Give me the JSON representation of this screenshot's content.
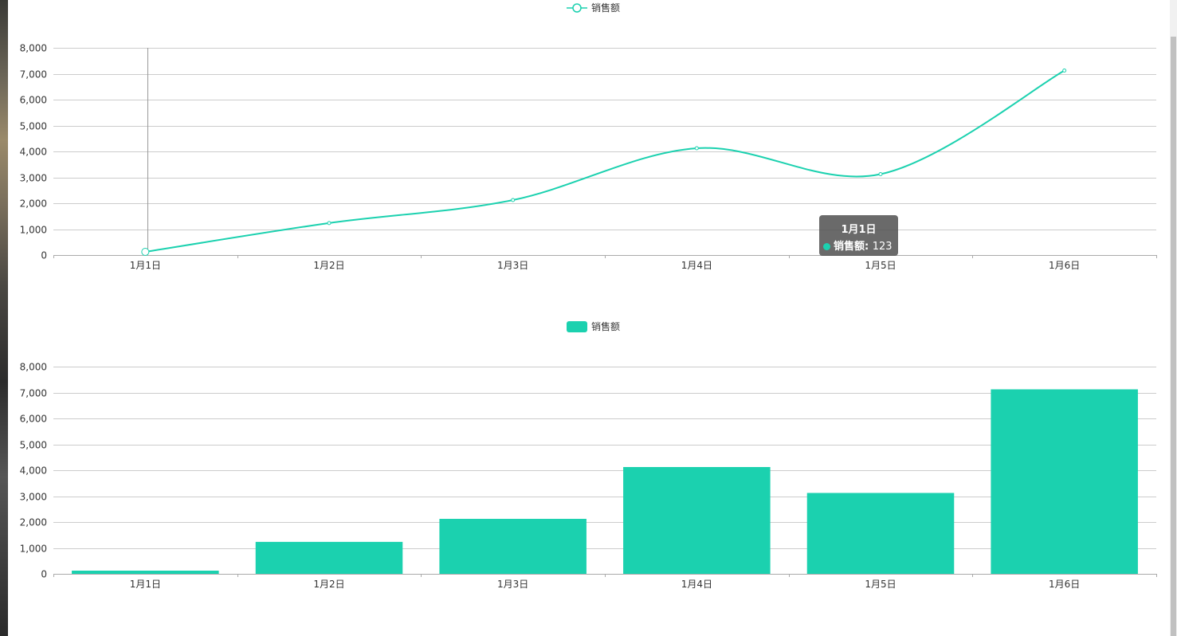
{
  "colors": {
    "series": "#1bd1af",
    "grid": "#cccccc",
    "axis": "#aaaaaa",
    "text": "#333333"
  },
  "tooltip": {
    "title": "1月1日",
    "series_name": "销售额",
    "value": "123"
  },
  "chart_data": [
    {
      "type": "line",
      "smooth": true,
      "legend": "销售额",
      "legend_position": "top-center",
      "categories": [
        "1月1日",
        "1月2日",
        "1月3日",
        "1月4日",
        "1月5日",
        "1月6日"
      ],
      "series": [
        {
          "name": "销售额",
          "values": [
            123,
            1234,
            2123,
            4123,
            3123,
            7123
          ]
        }
      ],
      "ylim": [
        0,
        8000
      ],
      "yticks": [
        "0",
        "1,000",
        "2,000",
        "3,000",
        "4,000",
        "5,000",
        "6,000",
        "7,000",
        "8,000"
      ],
      "grid": true
    },
    {
      "type": "bar",
      "legend": "销售额",
      "legend_position": "top-center",
      "categories": [
        "1月1日",
        "1月2日",
        "1月3日",
        "1月4日",
        "1月5日",
        "1月6日"
      ],
      "series": [
        {
          "name": "销售额",
          "values": [
            123,
            1234,
            2123,
            4123,
            3123,
            7123
          ]
        }
      ],
      "ylim": [
        0,
        8000
      ],
      "yticks": [
        "0",
        "1,000",
        "2,000",
        "3,000",
        "4,000",
        "5,000",
        "6,000",
        "7,000",
        "8,000"
      ],
      "grid": true
    }
  ]
}
